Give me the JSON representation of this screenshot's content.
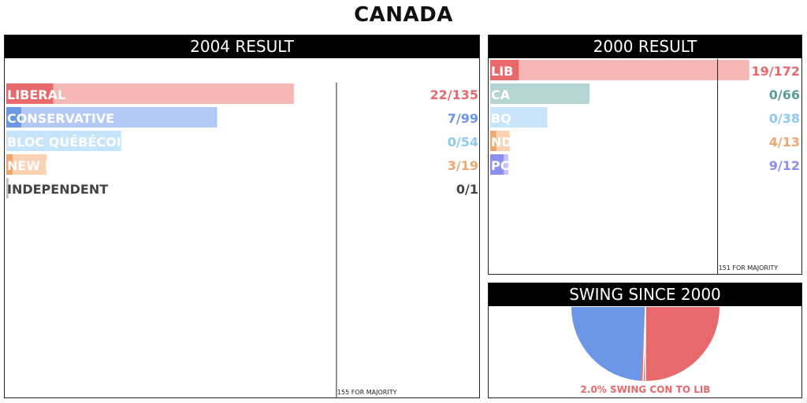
{
  "page": {
    "title": "CANADA"
  },
  "chart_data": [
    {
      "type": "bar",
      "title": "2004 RESULT",
      "note": "155 FOR MAJORITY",
      "majority": 155,
      "seat_max": 350,
      "series": [
        {
          "name": "LIBERAL",
          "seats": 22,
          "total": 135,
          "seat_label": "22/135",
          "total_color": "#f6b7b7",
          "seat_color": "#e8696b",
          "text_color": "#e8696b"
        },
        {
          "name": "CONSERVATIVE",
          "seats": 7,
          "total": 99,
          "seat_label": "7/99",
          "total_color": "#b3c9f5",
          "seat_color": "#6c96e6",
          "text_color": "#6c96e6"
        },
        {
          "name": "BLOC QUÉBÉCOIS",
          "seats": 0,
          "total": 54,
          "seat_label": "0/54",
          "total_color": "#c6e5fb",
          "seat_color": "#8ccaf3",
          "text_color": "#8ccaf3"
        },
        {
          "name": "NEW DEMOCRATIC PARTY",
          "seats": 3,
          "total": 19,
          "seat_label": "3/19",
          "total_color": "#fbd3b4",
          "seat_color": "#f0a66e",
          "text_color": "#f0a66e"
        },
        {
          "name": "INDEPENDENT",
          "seats": 0,
          "total": 1,
          "seat_label": "0/1",
          "total_color": "#bdbdbd",
          "seat_color": "#777777",
          "text_color": "#444444"
        }
      ]
    },
    {
      "type": "bar",
      "title": "2000 RESULT",
      "note": "151 FOR MAJORITY",
      "majority": 151,
      "seat_max": 180,
      "series": [
        {
          "name": "LIB",
          "seats": 19,
          "total": 172,
          "seat_label": "19/172",
          "total_color": "#f6b7b7",
          "seat_color": "#e8696b",
          "text_color": "#e8696b"
        },
        {
          "name": "CA",
          "seats": 0,
          "total": 66,
          "seat_label": "0/66",
          "total_color": "#b5d4d4",
          "seat_color": "#6fa8a8",
          "text_color": "#5e9c9c"
        },
        {
          "name": "BQ",
          "seats": 0,
          "total": 38,
          "seat_label": "0/38",
          "total_color": "#c6e5fb",
          "seat_color": "#8ccaf3",
          "text_color": "#8ccaf3"
        },
        {
          "name": "NDP",
          "seats": 4,
          "total": 13,
          "seat_label": "4/13",
          "total_color": "#fbd3b4",
          "seat_color": "#f0a66e",
          "text_color": "#f0a66e"
        },
        {
          "name": "PC",
          "seats": 9,
          "total": 12,
          "seat_label": "9/12",
          "total_color": "#c4c4f6",
          "seat_color": "#8e8ef0",
          "text_color": "#8e8ef0"
        }
      ]
    },
    {
      "type": "pie",
      "title": "SWING SINCE 2000",
      "caption": "2.0% SWING CON TO LIB",
      "swing_percent": 2.0,
      "slices": [
        {
          "party": "CON",
          "value": 48,
          "color": "#6c96e6"
        },
        {
          "party": "LIB",
          "value": 52,
          "color": "#e8696b"
        }
      ],
      "caption_color": "#e8696b"
    }
  ]
}
